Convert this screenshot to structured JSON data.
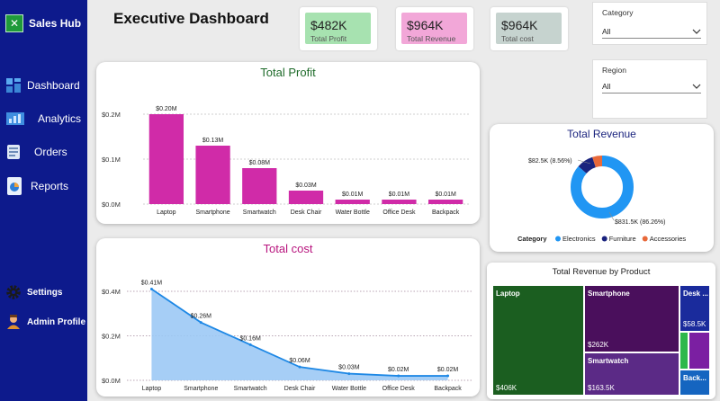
{
  "app": {
    "name": "Sales Hub"
  },
  "page_title": "Executive Dashboard",
  "nav": {
    "dashboard": "Dashboard",
    "analytics": "Analytics",
    "orders": "Orders",
    "reports": "Reports",
    "settings": "Settings",
    "admin": "Admin Profile"
  },
  "kpis": {
    "profit": {
      "value": "$482K",
      "label": "Total Profit",
      "color": "#a7e2b0"
    },
    "revenue": {
      "value": "$964K",
      "label": "Total Revenue",
      "color": "#f2a7d8"
    },
    "cost": {
      "value": "$964K",
      "label": "Total cost",
      "color": "#c6d3cf"
    }
  },
  "filters": {
    "category": {
      "label": "Category",
      "value": "All"
    },
    "region": {
      "label": "Region",
      "value": "All"
    }
  },
  "treemap": {
    "title": "Total Revenue by Product",
    "cells": [
      {
        "name": "Laptop",
        "value": "$406K",
        "color": "#1b5e20"
      },
      {
        "name": "Smartphone",
        "value": "$262K",
        "color": "#4a0f5c"
      },
      {
        "name": "Smartwatch",
        "value": "$163.5K",
        "color": "#5b2a86"
      },
      {
        "name": "Desk ...",
        "value": "$58.5K",
        "color": "#1a2b9c"
      },
      {
        "name": "",
        "value": "",
        "color": "#2eb84b"
      },
      {
        "name": "",
        "value": "",
        "color": "#7b1fa2"
      },
      {
        "name": "Back...",
        "value": "",
        "color": "#1565c0"
      }
    ]
  },
  "chart_data": [
    {
      "type": "bar",
      "title": "Total Profit",
      "categories": [
        "Laptop",
        "Smartphone",
        "Smartwatch",
        "Desk Chair",
        "Water Bottle",
        "Office Desk",
        "Backpack"
      ],
      "values": [
        0.2,
        0.13,
        0.08,
        0.03,
        0.01,
        0.01,
        0.01
      ],
      "data_labels": [
        "$0.20M",
        "$0.13M",
        "$0.08M",
        "$0.03M",
        "$0.01M",
        "$0.01M",
        "$0.01M"
      ],
      "yticks": [
        "$0.0M",
        "$0.1M",
        "$0.2M"
      ],
      "ylim": [
        0,
        0.2
      ],
      "color": "#d02ba8",
      "title_color": "#1e6b2a"
    },
    {
      "type": "area",
      "title": "Total cost",
      "categories": [
        "Laptop",
        "Smartphone",
        "Smartwatch",
        "Desk Chair",
        "Water Bottle",
        "Office Desk",
        "Backpack"
      ],
      "values": [
        0.41,
        0.26,
        0.16,
        0.06,
        0.03,
        0.02,
        0.02
      ],
      "data_labels": [
        "$0.41M",
        "$0.26M",
        "$0.16M",
        "$0.06M",
        "$0.03M",
        "$0.02M",
        "$0.02M"
      ],
      "yticks": [
        "$0.0M",
        "$0.2M",
        "$0.4M"
      ],
      "ylim": [
        0,
        0.4
      ],
      "color": "#1e88e5",
      "fill": "#9cc9f5",
      "title_color": "#b8157e"
    },
    {
      "type": "pie",
      "title": "Total Revenue",
      "legend_title": "Category",
      "slices": [
        {
          "name": "Electronics",
          "value": 831.5,
          "label": "$831.5K (86.26%)",
          "color": "#2196f3"
        },
        {
          "name": "Furniture",
          "value": 82.5,
          "label": "$82.5K (8.56%)",
          "color": "#1a237e"
        },
        {
          "name": "Accessories",
          "value": 50.0,
          "label": "",
          "color": "#e8693a"
        }
      ],
      "title_color": "#1a237e"
    }
  ]
}
